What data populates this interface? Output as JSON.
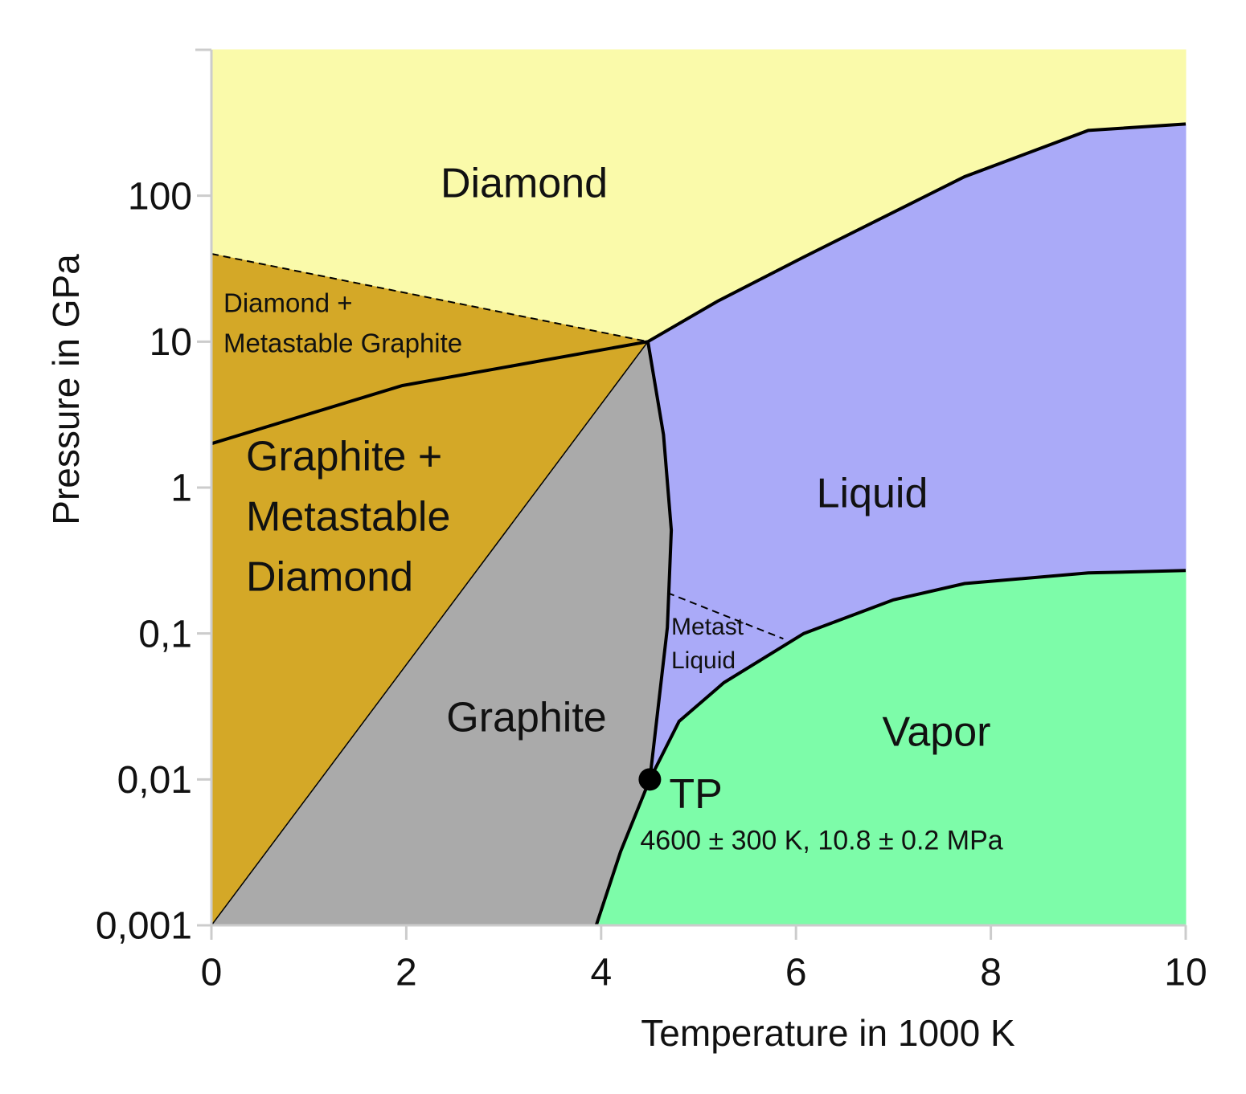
{
  "chart_data": {
    "type": "phase_diagram",
    "x_label": "Temperature in 1000 K",
    "y_label": "Pressure in GPa",
    "xlim": [
      0,
      10
    ],
    "ylim": [
      0.001,
      1000
    ],
    "y_scale": "log",
    "xticks": [
      0,
      2,
      4,
      6,
      8,
      10
    ],
    "yticks": [
      {
        "value": 0.001,
        "label": "0,001"
      },
      {
        "value": 0.01,
        "label": "0,01"
      },
      {
        "value": 0.1,
        "label": "0,1"
      },
      1,
      10,
      100
    ],
    "regions": [
      {
        "label": [
          "Diamond"
        ],
        "color": "#fafaaa",
        "x": [
          0,
          4.48,
          5.2,
          6.08,
          7.73,
          9,
          10,
          10,
          0
        ],
        "y": [
          40,
          10,
          19,
          38,
          135,
          280,
          310,
          1000,
          1000
        ]
      },
      {
        "label": [
          "Diamond +",
          "Metastable Graphite"
        ],
        "color": "#d4a827",
        "x": [
          0,
          4.48,
          1.96,
          0
        ],
        "y": [
          40,
          10,
          5,
          2
        ]
      },
      {
        "label": [
          "Graphite +",
          "Metastable",
          "Diamond"
        ],
        "color": "#d4a827",
        "x": [
          0,
          1.96,
          4.48,
          0
        ],
        "y": [
          2,
          5,
          10,
          0.001
        ]
      },
      {
        "label": [
          "Graphite"
        ],
        "color": "#aaaaaa",
        "x": [
          0,
          4.48,
          4.64,
          4.72,
          4.68,
          4.5,
          3.95
        ],
        "y": [
          0.001,
          10,
          2.3,
          0.51,
          0.11,
          0.01,
          0.001
        ]
      },
      {
        "label": [
          "Liquid"
        ],
        "color": "#aaaaf8",
        "x": [
          4.48,
          5.2,
          6.08,
          7.73,
          9,
          10,
          10,
          9,
          7.73,
          7,
          6.08,
          5.26,
          4.8,
          4.5,
          4.68,
          4.72,
          4.64
        ],
        "y": [
          10,
          19,
          38,
          135,
          280,
          310,
          0.27,
          0.26,
          0.22,
          0.17,
          0.1,
          0.046,
          0.025,
          0.01,
          0.11,
          0.51,
          2.3
        ]
      },
      {
        "label": [
          "Vapor"
        ],
        "color": "#7dfca9",
        "x": [
          3.95,
          4.2,
          4.5,
          4.8,
          5.26,
          6.08,
          7,
          7.73,
          9,
          10,
          10
        ],
        "y": [
          0.001,
          0.0032,
          0.01,
          0.025,
          0.046,
          0.1,
          0.17,
          0.22,
          0.26,
          0.27,
          0.001
        ]
      }
    ],
    "boundaries": [
      {
        "style": "thick",
        "x": [
          0,
          1.96,
          4.48
        ],
        "y": [
          2,
          5,
          10
        ]
      },
      {
        "style": "dashed",
        "x": [
          0,
          4.48
        ],
        "y": [
          40,
          10
        ]
      },
      {
        "style": "thin",
        "x": [
          0,
          4.48
        ],
        "y": [
          0.001,
          10
        ]
      },
      {
        "style": "thick",
        "x": [
          4.48,
          4.64,
          4.72,
          4.68,
          4.5
        ],
        "y": [
          10,
          2.3,
          0.51,
          0.11,
          0.01
        ]
      },
      {
        "style": "thick",
        "x": [
          4.48,
          5.2,
          6.08,
          7.73,
          9,
          10
        ],
        "y": [
          10,
          19,
          38,
          135,
          280,
          310
        ]
      },
      {
        "style": "thick",
        "x": [
          3.95,
          4.2,
          4.5,
          4.8,
          5.26,
          6.08,
          7,
          7.73,
          9,
          10
        ],
        "y": [
          0.001,
          0.0032,
          0.01,
          0.025,
          0.046,
          0.1,
          0.17,
          0.22,
          0.26,
          0.27
        ]
      },
      {
        "style": "dashed",
        "x": [
          4.68,
          5.87
        ],
        "y": [
          0.19,
          0.092
        ]
      }
    ],
    "annotations": [
      [
        "Metast",
        "Liquid"
      ]
    ],
    "triple_point": {
      "label": "TP",
      "note": "4600 ± 300 K, 10.8 ± 0.2 MPa",
      "x": 4.5,
      "y": 0.01
    }
  }
}
